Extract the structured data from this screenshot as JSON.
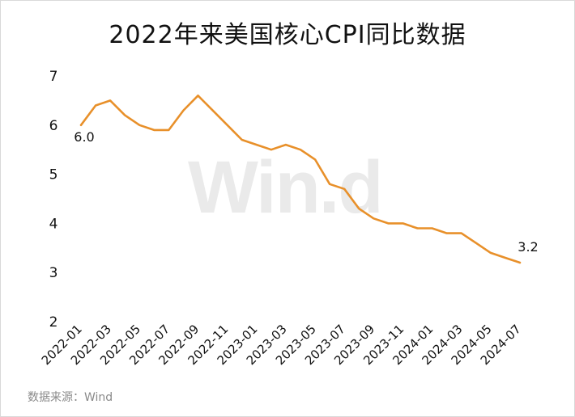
{
  "chart_data": {
    "type": "line",
    "title": "2022年来美国核心CPI同比数据",
    "x": [
      "2022-01",
      "2022-02",
      "2022-03",
      "2022-04",
      "2022-05",
      "2022-06",
      "2022-07",
      "2022-08",
      "2022-09",
      "2022-10",
      "2022-11",
      "2022-12",
      "2023-01",
      "2023-02",
      "2023-03",
      "2023-04",
      "2023-05",
      "2023-06",
      "2023-07",
      "2023-08",
      "2023-09",
      "2023-10",
      "2023-11",
      "2023-12",
      "2024-01",
      "2024-02",
      "2024-03",
      "2024-04",
      "2024-05",
      "2024-06",
      "2024-07"
    ],
    "xtick_labels": [
      "2022-01",
      "2022-03",
      "2022-05",
      "2022-07",
      "2022-09",
      "2022-11",
      "2023-01",
      "2023-03",
      "2023-05",
      "2023-07",
      "2023-09",
      "2023-11",
      "2024-01",
      "2024-03",
      "2024-05",
      "2024-07"
    ],
    "series": [
      {
        "values": [
          6.0,
          6.4,
          6.5,
          6.2,
          6.0,
          5.9,
          5.9,
          6.3,
          6.6,
          6.3,
          6.0,
          5.7,
          5.6,
          5.5,
          5.6,
          5.5,
          5.3,
          4.8,
          4.7,
          4.3,
          4.1,
          4.0,
          4.0,
          3.9,
          3.9,
          3.8,
          3.8,
          3.6,
          3.4,
          3.3,
          3.2
        ],
        "color": "#E8902A"
      }
    ],
    "data_labels": [
      {
        "index": 0,
        "text": "6.0"
      },
      {
        "index": 30,
        "text": "3.2"
      }
    ],
    "ylim": [
      2,
      7
    ],
    "yticks": [
      "2",
      "3",
      "4",
      "5",
      "6",
      "7"
    ],
    "grid": false,
    "legend": "none"
  },
  "source": "数据来源：Wind",
  "watermark": "Wind"
}
